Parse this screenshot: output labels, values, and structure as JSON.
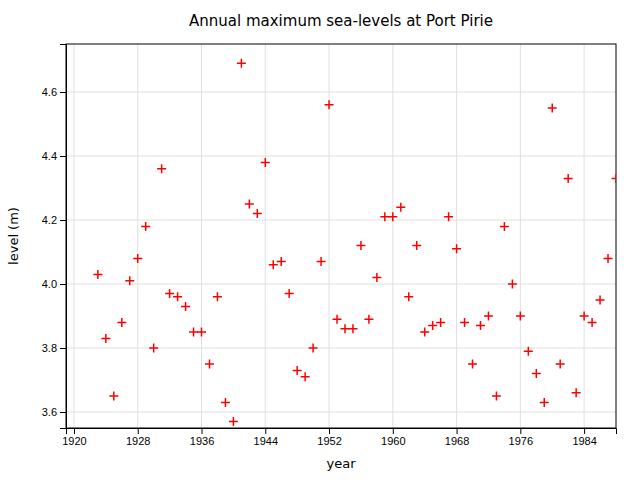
{
  "chart_data": {
    "type": "scatter",
    "title": "Annual maximum sea-levels at Port Pirie",
    "xlabel": "year",
    "ylabel": "level (m)",
    "x": [
      1923,
      1924,
      1925,
      1926,
      1927,
      1928,
      1929,
      1930,
      1931,
      1932,
      1933,
      1934,
      1935,
      1936,
      1937,
      1938,
      1939,
      1940,
      1941,
      1942,
      1943,
      1944,
      1945,
      1946,
      1947,
      1948,
      1949,
      1950,
      1951,
      1952,
      1953,
      1954,
      1955,
      1956,
      1957,
      1958,
      1959,
      1960,
      1961,
      1962,
      1963,
      1964,
      1965,
      1966,
      1967,
      1968,
      1969,
      1970,
      1971,
      1972,
      1973,
      1974,
      1975,
      1976,
      1977,
      1978,
      1979,
      1980,
      1981,
      1982,
      1983,
      1984,
      1985,
      1986,
      1987,
      1988
    ],
    "values": [
      4.03,
      3.83,
      3.65,
      3.88,
      4.01,
      4.08,
      4.18,
      3.8,
      4.36,
      3.97,
      3.96,
      3.93,
      3.85,
      3.85,
      3.75,
      3.96,
      3.63,
      3.57,
      4.69,
      4.25,
      4.22,
      4.38,
      4.06,
      4.07,
      3.97,
      3.73,
      3.71,
      3.8,
      4.07,
      4.56,
      3.89,
      3.86,
      3.86,
      4.12,
      3.89,
      4.02,
      4.21,
      4.21,
      4.24,
      3.96,
      4.12,
      3.85,
      3.87,
      3.88,
      4.21,
      4.11,
      3.88,
      3.75,
      3.87,
      3.9,
      3.65,
      4.18,
      4.0,
      3.9,
      3.79,
      3.72,
      3.63,
      4.55,
      3.75,
      4.33,
      3.66,
      3.9,
      3.88,
      3.95,
      4.08,
      4.33
    ],
    "xlim": [
      1919,
      1988
    ],
    "ylim": [
      3.55,
      4.75
    ],
    "xticks": [
      1920,
      1928,
      1936,
      1944,
      1952,
      1960,
      1968,
      1976,
      1984
    ],
    "yticks": [
      3.6,
      3.8,
      {
        "value": 4.0,
        "label": "4.0"
      },
      4.2,
      4.4,
      4.6
    ],
    "grid": true,
    "color": "red",
    "marker": "plus"
  }
}
